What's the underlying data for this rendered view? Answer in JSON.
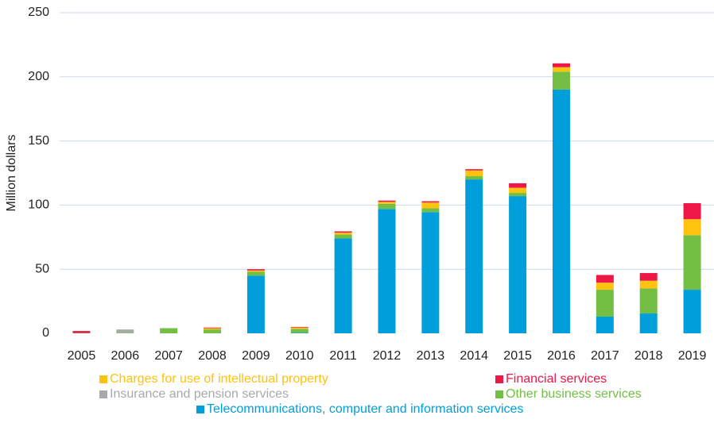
{
  "chart_data": {
    "type": "stacked_bar",
    "y_label": "Million dollars",
    "categories": [
      "2005",
      "2006",
      "2007",
      "2008",
      "2009",
      "2010",
      "2011",
      "2012",
      "2013",
      "2014",
      "2015",
      "2016",
      "2017",
      "2018",
      "2019"
    ],
    "series": [
      {
        "name": "Telecommunications, computer and information services",
        "color": "#009edb",
        "values": [
          0,
          0,
          0,
          0,
          45,
          0.5,
          74,
          97,
          94.5,
          120,
          107,
          190,
          13,
          15.5,
          34
        ]
      },
      {
        "name": "Other business services",
        "color": "#72bf44",
        "values": [
          0.3,
          0.5,
          4,
          3,
          3,
          3,
          3,
          4,
          3,
          2.5,
          2.5,
          14,
          21,
          19.5,
          42.5
        ]
      },
      {
        "name": "Insurance and pension services",
        "color": "#a7a9ac",
        "values": [
          0,
          2.5,
          0,
          0,
          0,
          0,
          0,
          0,
          0,
          0,
          0,
          0,
          0,
          0,
          0
        ]
      },
      {
        "name": "Charges for use of intellectual property",
        "color": "#ffc20e",
        "values": [
          0,
          0,
          0,
          1,
          1,
          1,
          1.5,
          1.5,
          4.5,
          4.5,
          4,
          3.5,
          5.5,
          6,
          12.5
        ]
      },
      {
        "name": "Financial services",
        "color": "#ed1847",
        "values": [
          1.5,
          0,
          0,
          0.5,
          1,
          0.5,
          1,
          1,
          1,
          1,
          3.5,
          3,
          6,
          6,
          12.5
        ]
      }
    ],
    "ylim": [
      0,
      250
    ],
    "yticks": [
      0,
      50,
      100,
      150,
      200,
      250
    ],
    "grid": true
  }
}
